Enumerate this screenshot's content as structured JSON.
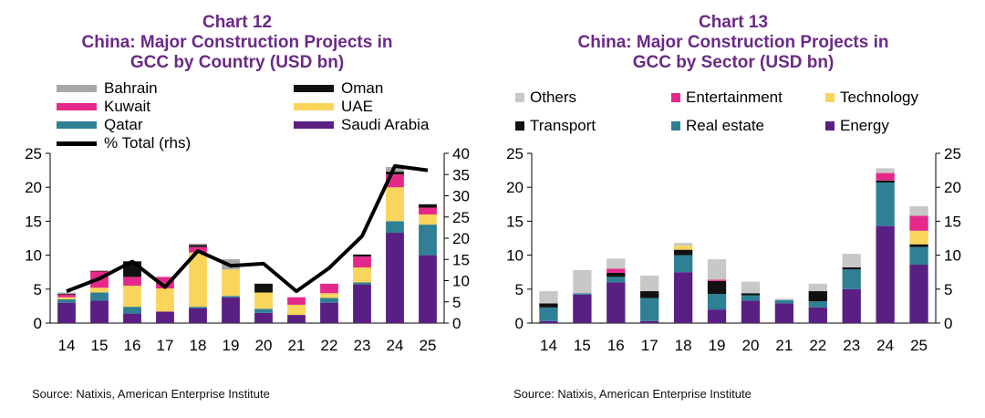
{
  "chart_data": [
    {
      "type": "bar",
      "stacked": true,
      "title_lines": [
        "Chart 12",
        "China: Major Construction Projects in",
        "GCC by Country (USD bn)"
      ],
      "categories": [
        "14",
        "15",
        "16",
        "17",
        "18",
        "19",
        "20",
        "21",
        "22",
        "23",
        "24",
        "25"
      ],
      "ylim": [
        0,
        25
      ],
      "yticks": [
        "0",
        "5",
        "10",
        "15",
        "20",
        "25"
      ],
      "y2lim": [
        0,
        40
      ],
      "y2ticks": [
        "0",
        "5",
        "10",
        "15",
        "20",
        "25",
        "30",
        "35",
        "40"
      ],
      "series": [
        {
          "name": "Saudi Arabia",
          "color": "#5a1f82",
          "values": [
            3.0,
            3.3,
            1.4,
            1.7,
            2.2,
            3.8,
            1.5,
            1.2,
            3.0,
            5.7,
            13.3,
            10.0
          ]
        },
        {
          "name": "Qatar",
          "color": "#2f7f95",
          "values": [
            0.5,
            1.2,
            1.0,
            0.0,
            0.2,
            0.2,
            0.6,
            0.0,
            0.7,
            0.3,
            1.7,
            4.5
          ]
        },
        {
          "name": "UAE",
          "color": "#f9d55c",
          "values": [
            0.3,
            0.7,
            3.1,
            3.4,
            8.0,
            3.9,
            2.4,
            1.5,
            0.7,
            2.2,
            5.0,
            1.5
          ]
        },
        {
          "name": "Kuwait",
          "color": "#e5298a",
          "values": [
            0.4,
            2.4,
            1.3,
            1.7,
            0.8,
            0.0,
            0.0,
            1.1,
            1.4,
            1.6,
            1.9,
            1.0
          ]
        },
        {
          "name": "Oman",
          "color": "#111111",
          "values": [
            0.1,
            0.1,
            2.3,
            0.0,
            0.3,
            0.0,
            1.3,
            0.0,
            0.0,
            0.3,
            0.4,
            0.5
          ]
        },
        {
          "name": "Bahrain",
          "color": "#a8a8a8",
          "values": [
            0.2,
            0.0,
            0.0,
            0.0,
            0.2,
            1.5,
            0.0,
            0.0,
            0.0,
            0.0,
            0.7,
            0.0
          ]
        }
      ],
      "line_series": {
        "name": "% Total (rhs)",
        "color": "#000000",
        "values": [
          7.5,
          10.5,
          14.5,
          8.5,
          17.0,
          13.5,
          14.0,
          7.5,
          13.0,
          20.5,
          37.0,
          36.0
        ]
      },
      "legend": [
        {
          "label": "Bahrain",
          "color": "#a8a8a8",
          "kind": "bar"
        },
        {
          "label": "Oman",
          "color": "#111111",
          "kind": "bar"
        },
        {
          "label": "Kuwait",
          "color": "#e5298a",
          "kind": "bar"
        },
        {
          "label": "UAE",
          "color": "#f9d55c",
          "kind": "bar"
        },
        {
          "label": "Qatar",
          "color": "#2f7f95",
          "kind": "bar"
        },
        {
          "label": "Saudi Arabia",
          "color": "#5a1f82",
          "kind": "bar"
        },
        {
          "label": "% Total (rhs)",
          "color": "#000000",
          "kind": "line"
        }
      ],
      "source": "Source: Natixis, American Enterprise Institute"
    },
    {
      "type": "bar",
      "stacked": true,
      "title_lines": [
        "Chart 13",
        "China: Major Construction Projects in",
        "GCC by Sector (USD bn)"
      ],
      "categories": [
        "14",
        "15",
        "16",
        "17",
        "18",
        "19",
        "20",
        "21",
        "22",
        "23",
        "24",
        "25"
      ],
      "ylim": [
        0,
        25
      ],
      "yticks": [
        "0",
        "5",
        "10",
        "15",
        "20",
        "25"
      ],
      "series": [
        {
          "name": "Energy",
          "color": "#5a1f82",
          "values": [
            0.3,
            4.2,
            6.0,
            0.3,
            7.5,
            2.0,
            3.3,
            2.9,
            2.3,
            5.0,
            14.3,
            8.6
          ]
        },
        {
          "name": "Real estate",
          "color": "#2f7f95",
          "values": [
            2.0,
            0.2,
            0.8,
            3.4,
            2.5,
            2.3,
            0.8,
            0.5,
            0.9,
            2.9,
            6.4,
            2.6
          ]
        },
        {
          "name": "Transport",
          "color": "#111111",
          "values": [
            0.6,
            0.0,
            0.6,
            1.0,
            0.8,
            1.9,
            0.3,
            0.0,
            1.5,
            0.3,
            0.3,
            0.4
          ]
        },
        {
          "name": "Technology",
          "color": "#f9d55c",
          "values": [
            0.0,
            0.0,
            0.0,
            0.0,
            0.6,
            0.0,
            0.0,
            0.0,
            0.0,
            0.0,
            0.0,
            2.0
          ]
        },
        {
          "name": "Entertainment",
          "color": "#e5298a",
          "values": [
            0.0,
            0.0,
            0.6,
            0.0,
            0.0,
            0.2,
            0.0,
            0.0,
            0.0,
            0.0,
            1.1,
            2.2
          ]
        },
        {
          "name": "Others",
          "color": "#c8c8c8",
          "values": [
            1.8,
            3.4,
            1.5,
            2.3,
            0.4,
            3.0,
            1.7,
            0.2,
            1.1,
            2.0,
            0.7,
            1.4
          ]
        }
      ],
      "legend": [
        {
          "label": "Others",
          "color": "#c8c8c8",
          "kind": "bar"
        },
        {
          "label": "Entertainment",
          "color": "#e5298a",
          "kind": "bar"
        },
        {
          "label": "Technology",
          "color": "#f9d55c",
          "kind": "bar"
        },
        {
          "label": "Transport",
          "color": "#111111",
          "kind": "bar"
        },
        {
          "label": "Real estate",
          "color": "#2f7f95",
          "kind": "bar"
        },
        {
          "label": "Energy",
          "color": "#5a1f82",
          "kind": "bar"
        }
      ],
      "source": "Source: Natixis, American Enterprise Institute"
    }
  ]
}
